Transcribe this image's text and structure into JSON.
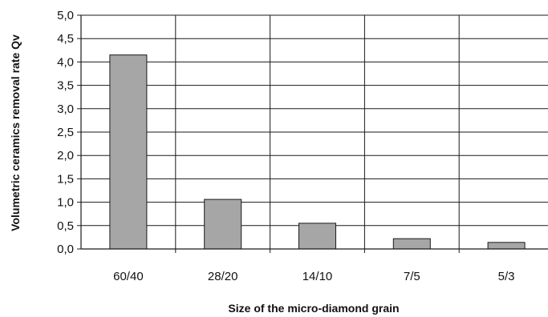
{
  "chart_data": {
    "type": "bar",
    "title": "",
    "xlabel": "Size of the micro-diamond grain",
    "ylabel": "Volumetric  ceramics removal rate Qv",
    "categories": [
      "60/40",
      "28/20",
      "14/10",
      "7/5",
      "5/3"
    ],
    "values": [
      4.15,
      1.06,
      0.55,
      0.22,
      0.14
    ],
    "ylim": [
      0,
      5
    ],
    "yticks": [
      "0,0",
      "0,5",
      "1,0",
      "1,5",
      "2,0",
      "2,5",
      "3,0",
      "3,5",
      "4,0",
      "4,5",
      "5,0"
    ],
    "grid": true,
    "legend": "none",
    "colors": {
      "bar_fill": "#a6a6a6",
      "bar_stroke": "#1a1a1a",
      "grid": "#1a1a1a",
      "axis": "#1a1a1a"
    }
  }
}
